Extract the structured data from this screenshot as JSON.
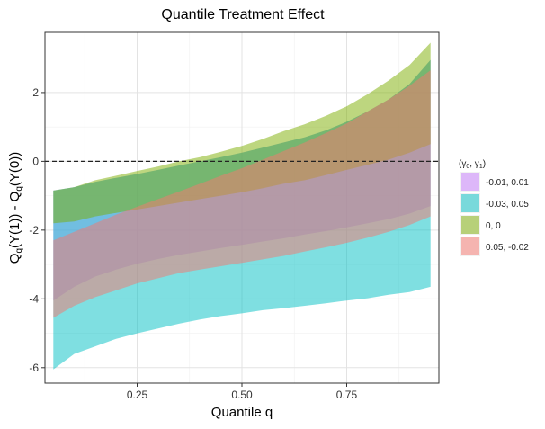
{
  "chart_data": {
    "type": "area",
    "title": "Quantile Treatment Effect",
    "xlabel": "Quantile q",
    "ylabel_main": "Q",
    "ylabel_sub": "q",
    "ylabel_mid": "(Y(1)) - Q",
    "ylabel_end": "(Y(0))",
    "xlim": [
      0.03,
      0.97
    ],
    "ylim": [
      -6.45,
      3.75
    ],
    "x_ticks": [
      0.25,
      0.5,
      0.75
    ],
    "x_tick_labels": [
      "0.25",
      "0.50",
      "0.75"
    ],
    "y_ticks": [
      -6,
      -4,
      -2,
      0,
      2
    ],
    "y_tick_labels": [
      "-6",
      "-4",
      "-2",
      "0",
      "2"
    ],
    "reference_line": {
      "y": 0,
      "style": "dashed"
    },
    "grid": true,
    "legend": {
      "title": "(γ0, γ1)",
      "title_main_1": "(γ",
      "title_sub_1": "0",
      "title_main_2": ", γ",
      "title_sub_2": "1",
      "title_main_3": ")",
      "position": "right"
    },
    "series": [
      {
        "name": "-0.01, 0.01",
        "color": "#C77CFF",
        "x": [
          0.05,
          0.1,
          0.15,
          0.2,
          0.25,
          0.3,
          0.35,
          0.4,
          0.45,
          0.5,
          0.55,
          0.6,
          0.65,
          0.7,
          0.75,
          0.8,
          0.85,
          0.9,
          0.95
        ],
        "lower": [
          -4.05,
          -3.65,
          -3.35,
          -3.15,
          -2.98,
          -2.84,
          -2.72,
          -2.62,
          -2.52,
          -2.43,
          -2.33,
          -2.24,
          -2.13,
          -2.03,
          -1.92,
          -1.8,
          -1.68,
          -1.52,
          -1.3
        ],
        "upper": [
          -0.85,
          -0.75,
          -0.6,
          -0.48,
          -0.37,
          -0.25,
          -0.12,
          0.0,
          0.12,
          0.25,
          0.4,
          0.55,
          0.7,
          0.9,
          1.15,
          1.45,
          1.8,
          2.25,
          2.95
        ]
      },
      {
        "name": "-0.03, 0.05",
        "color": "#00BFC4",
        "x": [
          0.05,
          0.1,
          0.15,
          0.2,
          0.25,
          0.3,
          0.35,
          0.4,
          0.45,
          0.5,
          0.55,
          0.6,
          0.65,
          0.7,
          0.75,
          0.8,
          0.85,
          0.9,
          0.95
        ],
        "lower": [
          -6.05,
          -5.6,
          -5.38,
          -5.16,
          -5.0,
          -4.86,
          -4.72,
          -4.6,
          -4.5,
          -4.42,
          -4.33,
          -4.27,
          -4.2,
          -4.13,
          -4.05,
          -3.98,
          -3.88,
          -3.8,
          -3.65
        ],
        "upper": [
          -0.85,
          -0.75,
          -0.6,
          -0.48,
          -0.37,
          -0.25,
          -0.12,
          0.0,
          0.12,
          0.25,
          0.4,
          0.55,
          0.7,
          0.9,
          1.15,
          1.45,
          1.8,
          2.25,
          2.95
        ]
      },
      {
        "name": "0, 0",
        "color": "#7CAE00",
        "x": [
          0.05,
          0.1,
          0.15,
          0.2,
          0.25,
          0.3,
          0.35,
          0.4,
          0.45,
          0.5,
          0.55,
          0.6,
          0.65,
          0.7,
          0.75,
          0.8,
          0.85,
          0.9,
          0.95
        ],
        "lower": [
          -1.8,
          -1.75,
          -1.6,
          -1.5,
          -1.4,
          -1.3,
          -1.2,
          -1.1,
          -1.0,
          -0.9,
          -0.78,
          -0.65,
          -0.55,
          -0.4,
          -0.25,
          -0.1,
          0.05,
          0.25,
          0.5
        ],
        "upper": [
          -0.85,
          -0.75,
          -0.55,
          -0.42,
          -0.28,
          -0.15,
          0.0,
          0.12,
          0.28,
          0.45,
          0.65,
          0.88,
          1.08,
          1.32,
          1.6,
          1.95,
          2.35,
          2.8,
          3.45
        ]
      },
      {
        "name": "0.05, -0.02",
        "color": "#F8766D",
        "x": [
          0.05,
          0.1,
          0.15,
          0.2,
          0.25,
          0.3,
          0.35,
          0.4,
          0.45,
          0.5,
          0.55,
          0.6,
          0.65,
          0.7,
          0.75,
          0.8,
          0.85,
          0.9,
          0.95
        ],
        "lower": [
          -4.55,
          -4.2,
          -3.95,
          -3.75,
          -3.55,
          -3.4,
          -3.25,
          -3.15,
          -3.05,
          -2.95,
          -2.85,
          -2.75,
          -2.62,
          -2.5,
          -2.37,
          -2.22,
          -2.05,
          -1.85,
          -1.6
        ],
        "upper": [
          -2.3,
          -2.05,
          -1.8,
          -1.55,
          -1.32,
          -1.1,
          -0.88,
          -0.65,
          -0.42,
          -0.2,
          0.05,
          0.3,
          0.55,
          0.82,
          1.1,
          1.45,
          1.8,
          2.2,
          2.65
        ]
      }
    ]
  }
}
